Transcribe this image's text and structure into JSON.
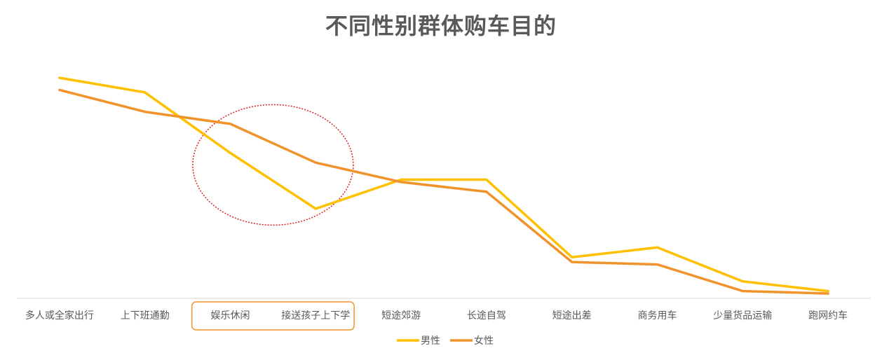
{
  "chart_data": {
    "type": "line",
    "title": "不同性别群体购车目的",
    "xlabel": "",
    "ylabel": "",
    "categories": [
      "多人或全家出行",
      "上下班通勤",
      "娱乐休闲",
      "接送孩子上下学",
      "短途郊游",
      "长途自驾",
      "短途出差",
      "商务用车",
      "少量货品运输",
      "跑网约车"
    ],
    "ylim": [
      0,
      100
    ],
    "grid": false,
    "legend_position": "bottom",
    "series": [
      {
        "name": "男性",
        "color": "#FFC000",
        "values": [
          91,
          85,
          60,
          37,
          49,
          49,
          17,
          21,
          7,
          3
        ]
      },
      {
        "name": "女性",
        "color": "#F0932B",
        "values": [
          86,
          77,
          72,
          56,
          48,
          44,
          15,
          14,
          3,
          2
        ]
      }
    ],
    "annotations": [
      {
        "type": "ellipse",
        "style": "dotted",
        "color": "#E02020",
        "around_categories": [
          "娱乐休闲",
          "接送孩子上下学"
        ]
      },
      {
        "type": "box",
        "color": "#F0932B",
        "around_categories": [
          "娱乐休闲",
          "接送孩子上下学"
        ]
      }
    ]
  }
}
